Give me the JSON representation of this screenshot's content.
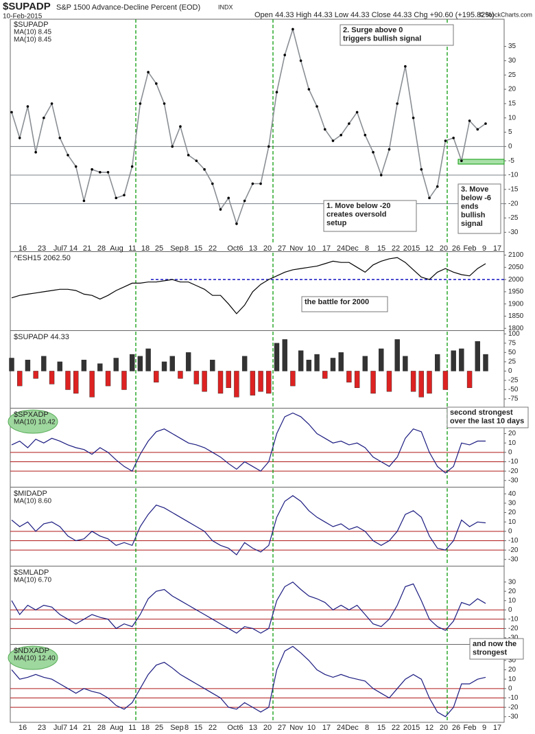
{
  "chart_data": [
    {
      "type": "line",
      "title": "$SUPADP",
      "subtitle": "S&P 1500 Advance-Decline Percent (EOD)",
      "exchange": "INDX",
      "date": "10-Feb-2015",
      "quote": "Open 44.33 High 44.33 Low 44.33 Close 44.33 Chg +90.60 (+195.82%)",
      "credit": "© StockCharts.com",
      "x_tick_labels": [
        "16",
        "23",
        "Jul7",
        "14",
        "21",
        "28",
        "Aug",
        "11",
        "18",
        "25",
        "Sep",
        "8",
        "15",
        "22",
        "Oct6",
        "13",
        "20",
        "27",
        "Nov",
        "10",
        "17",
        "24",
        "Dec",
        "8",
        "15",
        "22",
        "2015",
        "12",
        "20",
        "26",
        "Feb",
        "9",
        "17"
      ],
      "legend": [
        "$SUPADP",
        "MA(10) 8.45",
        "MA(10) 8.45"
      ],
      "markers": true,
      "series": [
        {
          "name": "$SUPADP",
          "color": "#8a8f94",
          "values": [
            12,
            3,
            14,
            -2,
            10,
            15,
            3,
            -3,
            -7,
            -19,
            -8,
            -9,
            -9,
            -18,
            -17,
            -7,
            15,
            26,
            22,
            15,
            0,
            7,
            -3,
            -5,
            -8,
            -13,
            -22,
            -18,
            -27,
            -19,
            -13,
            -13,
            0,
            19,
            32,
            41,
            30,
            20,
            14,
            6,
            2,
            4,
            8,
            12,
            4,
            -2,
            -10,
            -1,
            15,
            28,
            10,
            -8,
            -18,
            -14,
            2,
            3,
            -5,
            9,
            6,
            8
          ]
        }
      ],
      "ylim": [
        -34,
        44.5
      ],
      "yticks": [
        -30,
        -25,
        -20,
        -15,
        -10,
        -5,
        0,
        5,
        10,
        15,
        20,
        25,
        30,
        35
      ],
      "reference_lines": [
        0,
        -10,
        -20
      ],
      "reference_color": "#7a8087",
      "annotations": [
        {
          "lines": [
            "2. Surge above 0",
            "triggers bullish signal"
          ],
          "color": "#0a9a0a"
        },
        {
          "lines": [
            "1. Move below -20",
            "creates oversold",
            "setup"
          ],
          "color": "#1010c0"
        },
        {
          "lines": [
            "3. Move",
            "below -6",
            "ends",
            "bullish",
            "signal"
          ],
          "color": "#dd0000"
        }
      ]
    },
    {
      "type": "line",
      "legend": [
        "^ESH15 2062.50"
      ],
      "series": [
        {
          "name": "^ESH15",
          "color": "#000000",
          "values": [
            1925,
            1935,
            1940,
            1945,
            1950,
            1955,
            1960,
            1960,
            1955,
            1940,
            1935,
            1920,
            1935,
            1955,
            1970,
            1985,
            1985,
            1990,
            1990,
            1995,
            2000,
            1990,
            1990,
            1975,
            1960,
            1935,
            1935,
            1900,
            1860,
            1895,
            1950,
            1980,
            2000,
            2015,
            2030,
            2040,
            2045,
            2050,
            2055,
            2065,
            2075,
            2070,
            2070,
            2050,
            2030,
            2060,
            2075,
            2085,
            2090,
            2070,
            2040,
            2010,
            2000,
            2030,
            2045,
            2030,
            2020,
            2015,
            2045,
            2065
          ]
        }
      ],
      "ylim": [
        1795,
        2110
      ],
      "yticks": [
        1800,
        1850,
        1900,
        1950,
        2000,
        2050,
        2100
      ],
      "reference_lines": [
        2000
      ],
      "reference_color": "#1010c0",
      "reference_dash": true,
      "annotations": [
        {
          "lines": [
            "the battle for 2000"
          ],
          "color": "#1010c0"
        }
      ]
    },
    {
      "type": "bar",
      "legend": [
        "$SUPADP 44.33"
      ],
      "series": [
        {
          "name": "$SUPADP",
          "color": "#333333",
          "negative_color": "#dd2222",
          "values": [
            35,
            -40,
            30,
            -20,
            40,
            -35,
            25,
            -50,
            -60,
            30,
            -70,
            20,
            -40,
            35,
            -50,
            45,
            40,
            60,
            -30,
            25,
            40,
            -20,
            50,
            -35,
            -55,
            30,
            -60,
            -45,
            -70,
            40,
            -65,
            -55,
            -60,
            75,
            85,
            -40,
            55,
            30,
            45,
            -20,
            35,
            50,
            -30,
            -45,
            40,
            -60,
            60,
            -55,
            85,
            40,
            -55,
            -70,
            -60,
            45,
            -50,
            55,
            60,
            -45,
            80,
            45
          ]
        }
      ],
      "ylim": [
        -97,
        106
      ],
      "yticks": [
        -75,
        -50,
        -25,
        0,
        25,
        50,
        75,
        100
      ],
      "annotations": []
    },
    {
      "type": "line",
      "legend": [
        "$SPXADP",
        "MA(10) 10.42"
      ],
      "highlight": true,
      "series": [
        {
          "name": "$SPXADP",
          "color": "#1a1a80",
          "values": [
            8,
            12,
            5,
            14,
            10,
            15,
            12,
            8,
            5,
            3,
            -2,
            5,
            0,
            -8,
            -15,
            -20,
            -2,
            12,
            22,
            25,
            20,
            15,
            10,
            8,
            5,
            0,
            -5,
            -12,
            -18,
            -10,
            -15,
            -20,
            -10,
            20,
            38,
            42,
            38,
            30,
            20,
            15,
            10,
            12,
            8,
            10,
            5,
            -5,
            -10,
            -15,
            -5,
            15,
            25,
            22,
            0,
            -15,
            -22,
            -15,
            10,
            8,
            12,
            12
          ]
        }
      ],
      "ylim": [
        -36,
        46
      ],
      "yticks": [
        -30,
        -20,
        -10,
        0,
        10,
        20,
        30
      ],
      "reference_lines": [
        0,
        -10,
        -20
      ],
      "reference_color": "#b01818",
      "annotations": [
        {
          "lines": [
            "second strongest",
            "over the last 10 days"
          ],
          "color": "#0a9a0a"
        }
      ]
    },
    {
      "type": "line",
      "legend": [
        "$MIDADP",
        "MA(10) 8.60"
      ],
      "series": [
        {
          "name": "$MIDADP",
          "color": "#1a1a80",
          "values": [
            12,
            5,
            10,
            0,
            8,
            10,
            5,
            -5,
            -10,
            -8,
            0,
            -5,
            -8,
            -15,
            -12,
            -15,
            5,
            18,
            28,
            25,
            20,
            15,
            10,
            5,
            0,
            -10,
            -15,
            -18,
            -25,
            -12,
            -18,
            -22,
            -15,
            15,
            32,
            38,
            32,
            22,
            15,
            10,
            5,
            8,
            2,
            5,
            0,
            -10,
            -15,
            -10,
            0,
            18,
            22,
            15,
            -5,
            -18,
            -20,
            -10,
            12,
            5,
            10,
            9
          ]
        }
      ],
      "ylim": [
        -36,
        46
      ],
      "yticks": [
        -30,
        -20,
        -10,
        0,
        10,
        20,
        30,
        40
      ],
      "reference_lines": [
        0,
        -10,
        -20
      ],
      "reference_color": "#b01818",
      "annotations": []
    },
    {
      "type": "line",
      "legend": [
        "$SMLADP",
        "MA(10) 6.70"
      ],
      "series": [
        {
          "name": "$SMLADP",
          "color": "#1a1a80",
          "values": [
            10,
            -5,
            5,
            0,
            5,
            3,
            -5,
            -10,
            -15,
            -10,
            -5,
            -8,
            -10,
            -20,
            -15,
            -18,
            -5,
            12,
            20,
            22,
            15,
            10,
            5,
            0,
            -5,
            -10,
            -15,
            -20,
            -25,
            -18,
            -20,
            -25,
            -20,
            10,
            25,
            30,
            22,
            15,
            12,
            8,
            0,
            5,
            0,
            5,
            -5,
            -15,
            -18,
            -10,
            5,
            25,
            28,
            10,
            -10,
            -18,
            -22,
            -12,
            8,
            5,
            12,
            7
          ]
        }
      ],
      "ylim": [
        -36,
        46
      ],
      "yticks": [
        -30,
        -20,
        -10,
        0,
        10,
        20,
        30
      ],
      "reference_lines": [
        0,
        -10,
        -20
      ],
      "reference_color": "#b01818",
      "annotations": []
    },
    {
      "type": "line",
      "legend": [
        "$NDXADP",
        "MA(10) 12.40"
      ],
      "highlight": true,
      "series": [
        {
          "name": "$NDXADP",
          "color": "#1a1a80",
          "values": [
            20,
            10,
            12,
            15,
            12,
            10,
            5,
            0,
            -5,
            0,
            -3,
            -5,
            -10,
            -18,
            -22,
            -15,
            0,
            15,
            25,
            28,
            22,
            15,
            10,
            5,
            0,
            -5,
            -10,
            -20,
            -22,
            -15,
            -20,
            -25,
            -20,
            20,
            40,
            45,
            38,
            30,
            20,
            15,
            12,
            15,
            12,
            10,
            8,
            0,
            -5,
            -10,
            0,
            10,
            15,
            10,
            -10,
            -25,
            -30,
            -20,
            5,
            5,
            10,
            12
          ]
        }
      ],
      "ylim": [
        -36,
        46
      ],
      "yticks": [
        -30,
        -20,
        -10,
        0,
        10,
        20,
        30
      ],
      "reference_lines": [
        0,
        -10,
        -20
      ],
      "reference_color": "#b01818",
      "annotations": [
        {
          "lines": [
            "and now the",
            "strongest"
          ],
          "color": "#0a9a0a"
        }
      ]
    }
  ]
}
